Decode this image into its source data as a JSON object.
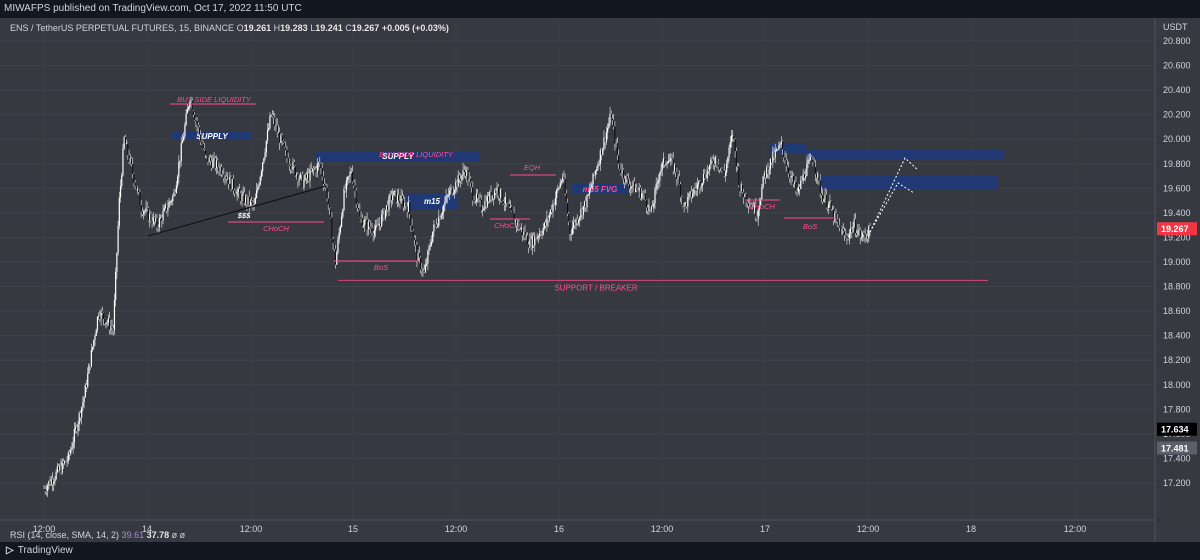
{
  "header": {
    "publisher_text": "MIWAFPS published on TradingView.com, Oct 17, 2022 11:50 UTC"
  },
  "legend": {
    "symbol": "ENS / TetherUS PERPETUAL FUTURES, 15, BINANCE",
    "o_label": "O",
    "o": "19.261",
    "h_label": "H",
    "h": "19.283",
    "l_label": "L",
    "l": "19.241",
    "c_label": "C",
    "c": "19.267",
    "change": "+0.005 (+0.03%)"
  },
  "rsi": {
    "label": "RSI (14, close, SMA, 14, 2)",
    "value1": "39.61",
    "value2": "37.78",
    "extra": "ø ø"
  },
  "footer": {
    "brand": "TradingView"
  },
  "chart_data": {
    "type": "candlestick",
    "currency": "USDT",
    "y_ticks": [
      17.2,
      17.4,
      17.6,
      17.8,
      18.0,
      18.2,
      18.4,
      18.6,
      18.8,
      19.0,
      19.2,
      19.4,
      19.6,
      19.8,
      20.0,
      20.2,
      20.4,
      20.6,
      20.8
    ],
    "ylim": [
      17.1,
      20.98
    ],
    "x_labels": [
      "12:00",
      "14",
      "12:00",
      "15",
      "12:00",
      "16",
      "12:00",
      "17",
      "12:00",
      "18",
      "12:00"
    ],
    "price_tags": [
      {
        "label": "19.267",
        "value": 19.267,
        "color": "#f23645",
        "text_color": "#ffffff"
      },
      {
        "label": "17.634",
        "value": 17.634,
        "color": "#000000",
        "text_color": "#ffffff"
      },
      {
        "label": "17.481",
        "value": 17.481,
        "color": "#5d606b",
        "text_color": "#ffffff"
      }
    ],
    "price_path": [
      [
        0,
        17.15
      ],
      [
        20,
        17.4
      ],
      [
        33,
        17.9
      ],
      [
        45,
        18.6
      ],
      [
        57,
        18.45
      ],
      [
        62,
        19.5
      ],
      [
        66,
        20.0
      ],
      [
        80,
        19.45
      ],
      [
        93,
        19.3
      ],
      [
        107,
        19.55
      ],
      [
        120,
        20.35
      ],
      [
        133,
        19.85
      ],
      [
        147,
        19.75
      ],
      [
        160,
        19.55
      ],
      [
        173,
        19.45
      ],
      [
        187,
        20.2
      ],
      [
        200,
        19.85
      ],
      [
        213,
        19.65
      ],
      [
        227,
        19.8
      ],
      [
        233,
        19.55
      ],
      [
        240,
        19.0
      ],
      [
        247,
        19.55
      ],
      [
        253,
        19.75
      ],
      [
        260,
        19.35
      ],
      [
        273,
        19.25
      ],
      [
        287,
        19.55
      ],
      [
        300,
        19.45
      ],
      [
        307,
        19.05
      ],
      [
        313,
        18.9
      ],
      [
        320,
        19.25
      ],
      [
        333,
        19.55
      ],
      [
        347,
        19.75
      ],
      [
        353,
        19.55
      ],
      [
        360,
        19.45
      ],
      [
        373,
        19.6
      ],
      [
        387,
        19.35
      ],
      [
        400,
        19.15
      ],
      [
        413,
        19.3
      ],
      [
        427,
        19.7
      ],
      [
        433,
        19.25
      ],
      [
        447,
        19.5
      ],
      [
        460,
        19.95
      ],
      [
        467,
        20.2
      ],
      [
        473,
        19.8
      ],
      [
        480,
        19.65
      ],
      [
        493,
        19.55
      ],
      [
        500,
        19.4
      ],
      [
        507,
        19.75
      ],
      [
        513,
        19.85
      ],
      [
        520,
        19.75
      ],
      [
        527,
        19.45
      ],
      [
        533,
        19.55
      ],
      [
        540,
        19.65
      ],
      [
        553,
        19.85
      ],
      [
        560,
        19.7
      ],
      [
        567,
        20.05
      ],
      [
        573,
        19.6
      ],
      [
        587,
        19.4
      ],
      [
        593,
        19.7
      ],
      [
        600,
        19.85
      ],
      [
        607,
        19.95
      ],
      [
        613,
        19.75
      ],
      [
        620,
        19.55
      ],
      [
        627,
        19.75
      ],
      [
        633,
        19.85
      ],
      [
        640,
        19.55
      ],
      [
        647,
        19.45
      ],
      [
        653,
        19.3
      ],
      [
        660,
        19.2
      ],
      [
        667,
        19.3
      ],
      [
        673,
        19.2
      ],
      [
        680,
        19.25
      ]
    ],
    "levels": [
      {
        "label": "SUPPORT / BREAKER",
        "value": 18.85,
        "color": "#ff4d8d"
      }
    ],
    "zones": [
      {
        "label": "SUPPLY",
        "label_color": "#ffffff"
      },
      {
        "label": "SUPPLY",
        "label_color": "#ffffff"
      },
      {
        "label": "m15",
        "label_color": "#ffffff"
      },
      {
        "label": "m15 FVG",
        "label_color": "#ff4d8d"
      },
      {
        "label": "",
        "label_color": "#ffffff"
      },
      {
        "label": "",
        "label_color": "#ffffff"
      },
      {
        "label": "",
        "label_color": "#ffffff"
      }
    ],
    "annotations": [
      "BUY SIDE LIQUIDITY",
      "BUY SIDE LIQUIDITY",
      "$$$",
      "CHoCH",
      "BoS",
      "EQH",
      "CHoCH",
      "CHoCH",
      "BoS"
    ],
    "colors": {
      "candle": "#ffffff",
      "background": "#363940",
      "zone": "#1e3a7a",
      "annotation": "#ff4d8d"
    }
  }
}
